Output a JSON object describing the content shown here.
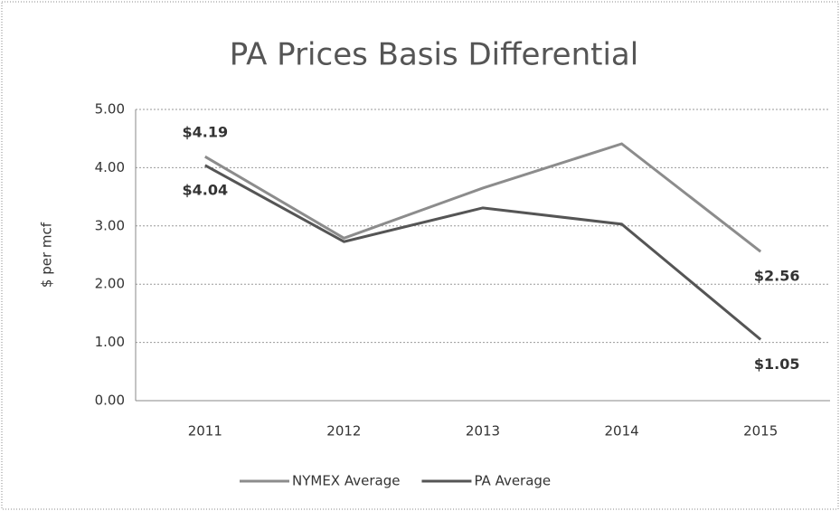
{
  "chart_data": {
    "type": "line",
    "title": "PA Prices Basis Differential",
    "y_label": "$ per mcf",
    "categories": [
      "2011",
      "2012",
      "2013",
      "2014",
      "2015"
    ],
    "series": [
      {
        "name": "NYMEX Average",
        "color": "#8c8c8c",
        "values": [
          4.19,
          2.79,
          3.65,
          4.41,
          2.56
        ],
        "value_labels": [
          "$4.19",
          null,
          null,
          null,
          "$2.56"
        ]
      },
      {
        "name": "PA Average",
        "color": "#555555",
        "values": [
          4.04,
          2.73,
          3.31,
          3.03,
          1.05
        ],
        "value_labels": [
          "$4.04",
          null,
          null,
          null,
          "$1.05"
        ]
      }
    ],
    "ylim": [
      0,
      5
    ],
    "yticks": [
      {
        "value": 0,
        "label": "0.00"
      },
      {
        "value": 1,
        "label": "1.00"
      },
      {
        "value": 2,
        "label": "2.00"
      },
      {
        "value": 3,
        "label": "3.00"
      },
      {
        "value": 4,
        "label": "4.00"
      },
      {
        "value": 5,
        "label": "5.00"
      }
    ],
    "grid": true,
    "legend": "bottom"
  }
}
